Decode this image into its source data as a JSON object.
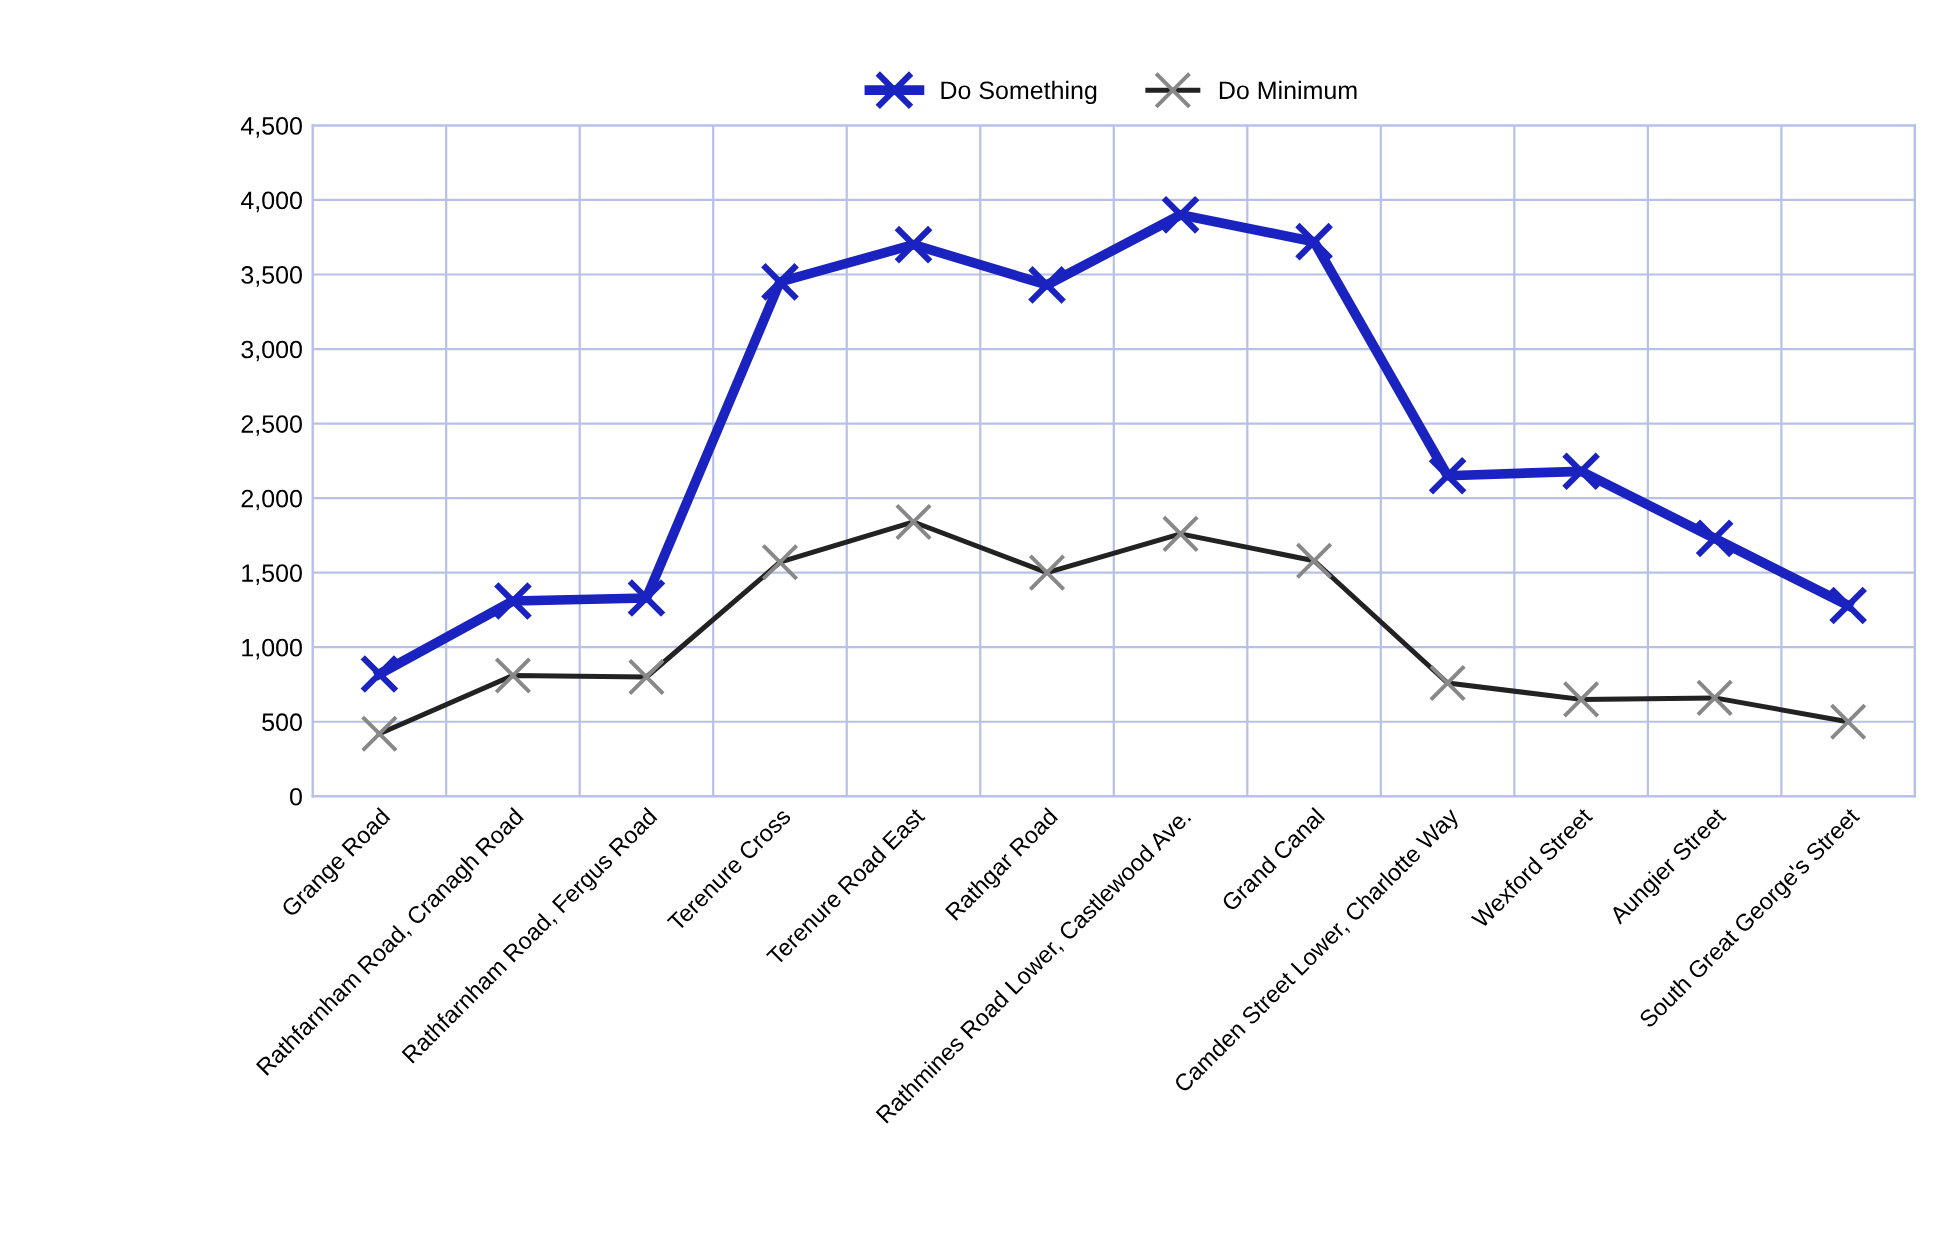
{
  "chart_data": {
    "type": "line",
    "categories": [
      "Grange Road",
      "Rathfarnham Road, Cranagh Road",
      "Rathfarnham Road, Fergus Road",
      "Terenure Cross",
      "Terenure Road East",
      "Rathgar Road",
      "Rathmines Road Lower, Castlewood Ave.",
      "Grand Canal",
      "Camden Street Lower, Charlotte Way",
      "Wexford Street",
      "Aungier Street",
      "South Great George's Street"
    ],
    "series": [
      {
        "name": "Do Something",
        "color": "#1a22c0",
        "values": [
          820,
          1310,
          1330,
          3450,
          3700,
          3430,
          3900,
          3720,
          2150,
          2180,
          1730,
          1280
        ]
      },
      {
        "name": "Do Minimum",
        "color": "#222222",
        "values": [
          420,
          810,
          800,
          1570,
          1840,
          1500,
          1760,
          1580,
          760,
          650,
          660,
          500
        ]
      }
    ],
    "ylim": [
      0,
      4500
    ],
    "yticks": [
      {
        "value": 0,
        "label": "0"
      },
      {
        "value": 500,
        "label": "500"
      },
      {
        "value": 1000,
        "label": "1,000"
      },
      {
        "value": 1500,
        "label": "1,500"
      },
      {
        "value": 2000,
        "label": "2,000"
      },
      {
        "value": 2500,
        "label": "2,500"
      },
      {
        "value": 3000,
        "label": "3,000"
      },
      {
        "value": 3500,
        "label": "3,500"
      },
      {
        "value": 4000,
        "label": "4,000"
      },
      {
        "value": 4500,
        "label": "4,500"
      }
    ],
    "grid": true,
    "legend": "top",
    "marker": "cross",
    "line_style": "solid"
  }
}
